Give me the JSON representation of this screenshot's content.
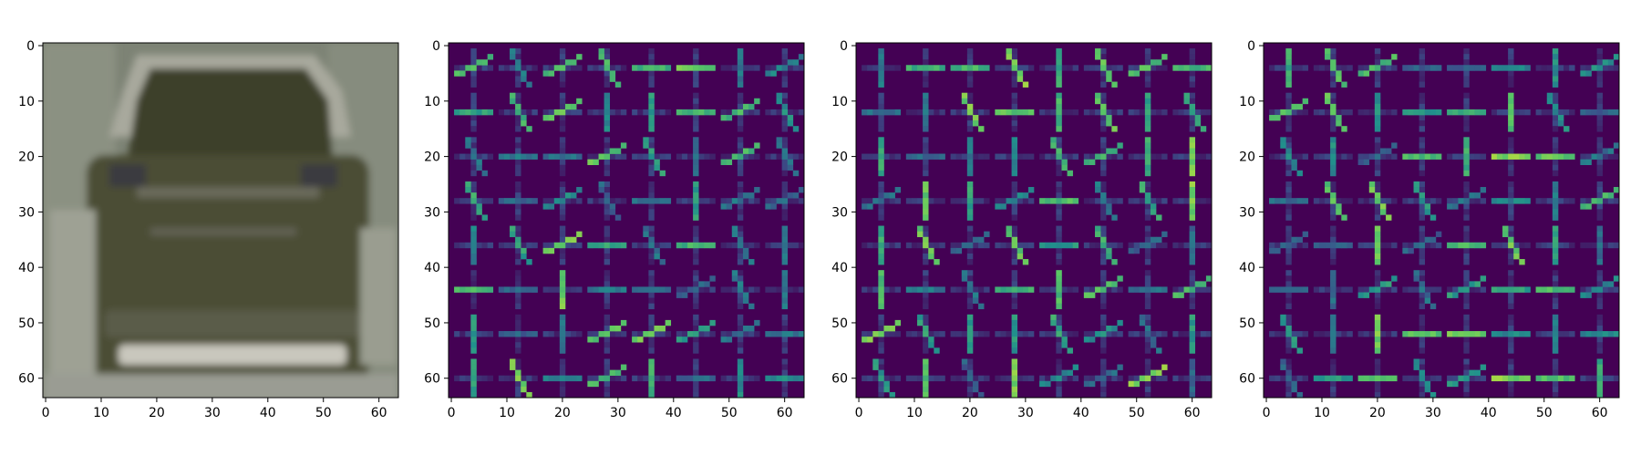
{
  "figure": {
    "panels": [
      {
        "kind": "image",
        "description_icon": "car-rear-photo",
        "x_ticks": [
          "0",
          "10",
          "20",
          "30",
          "40",
          "50",
          "60"
        ],
        "y_ticks": [
          "0",
          "10",
          "20",
          "30",
          "40",
          "50",
          "60"
        ]
      },
      {
        "kind": "hog",
        "x_ticks": [
          "0",
          "10",
          "20",
          "30",
          "40",
          "50",
          "60"
        ],
        "y_ticks": [
          "0",
          "10",
          "20",
          "30",
          "40",
          "50",
          "60"
        ]
      },
      {
        "kind": "hog",
        "x_ticks": [
          "0",
          "10",
          "20",
          "30",
          "40",
          "50",
          "60"
        ],
        "y_ticks": [
          "0",
          "10",
          "20",
          "30",
          "40",
          "50",
          "60"
        ]
      },
      {
        "kind": "hog",
        "x_ticks": [
          "0",
          "10",
          "20",
          "30",
          "40",
          "50",
          "60"
        ],
        "y_ticks": [
          "0",
          "10",
          "20",
          "30",
          "40",
          "50",
          "60"
        ]
      }
    ],
    "axis_range": [
      0,
      64
    ],
    "colors": {
      "viridis_low": "#440154",
      "viridis_mid": "#21918c",
      "viridis_high": "#fde725",
      "photo_bg": "#7d8375",
      "car_body": "#4a4d37"
    }
  }
}
